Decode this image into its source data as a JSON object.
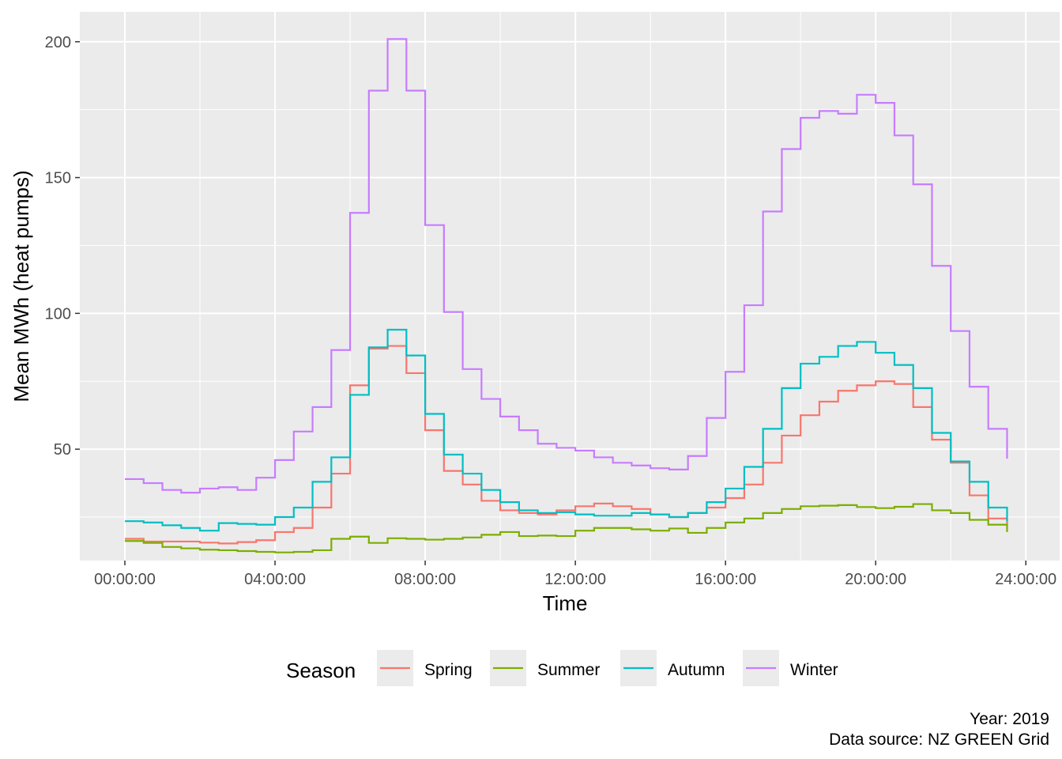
{
  "chart_data": {
    "type": "line",
    "step": true,
    "xlabel": "Time",
    "ylabel": "Mean MWh (heat pumps)",
    "x_ticks": [
      "00:00:00",
      "04:00:00",
      "08:00:00",
      "12:00:00",
      "16:00:00",
      "20:00:00",
      "24:00:00"
    ],
    "x_tick_hours": [
      0,
      4,
      8,
      12,
      16,
      20,
      24
    ],
    "xlim_hours": [
      -1.2,
      24.9
    ],
    "y_ticks": [
      50,
      100,
      150,
      200
    ],
    "ylim": [
      9,
      211
    ],
    "grid": true,
    "legend": {
      "title": "Season",
      "position": "bottom"
    },
    "caption": [
      "Year: 2019",
      "Data source: NZ GREEN Grid"
    ],
    "x_hours": [
      0,
      0.5,
      1,
      1.5,
      2,
      2.5,
      3,
      3.5,
      4,
      4.5,
      5,
      5.5,
      6,
      6.5,
      7,
      7.5,
      8,
      8.5,
      9,
      9.5,
      10,
      10.5,
      11,
      11.5,
      12,
      12.5,
      13,
      13.5,
      14,
      14.5,
      15,
      15.5,
      16,
      16.5,
      17,
      17.5,
      18,
      18.5,
      19,
      19.5,
      20,
      20.5,
      21,
      21.5,
      22,
      22.5,
      23,
      23.5
    ],
    "series": [
      {
        "name": "Spring",
        "color": "#F8766D",
        "values": [
          17.0,
          16.0,
          16.0,
          16.0,
          15.6,
          15.3,
          15.8,
          16.5,
          19.5,
          21.0,
          28.5,
          41.0,
          73.5,
          87.0,
          88.0,
          78.0,
          57.0,
          42.0,
          37.0,
          31.0,
          27.5,
          26.5,
          26.0,
          27.5,
          29.0,
          30.0,
          29.0,
          28.0,
          26.0,
          25.0,
          26.5,
          28.5,
          32.0,
          37.0,
          45.0,
          55.0,
          62.5,
          67.5,
          71.5,
          73.5,
          75.0,
          74.0,
          65.5,
          53.5,
          45.0,
          33.0,
          24.5,
          22.0
        ]
      },
      {
        "name": "Summer",
        "color": "#7CAE00",
        "values": [
          16.2,
          15.5,
          14.0,
          13.5,
          13.0,
          12.8,
          12.5,
          12.2,
          12.0,
          12.2,
          12.8,
          17.0,
          17.8,
          15.5,
          17.2,
          17.0,
          16.7,
          17.0,
          17.5,
          18.5,
          19.5,
          18.0,
          18.2,
          18.0,
          20.0,
          21.0,
          21.0,
          20.5,
          20.0,
          20.8,
          19.2,
          21.0,
          23.0,
          24.5,
          26.5,
          28.0,
          29.0,
          29.2,
          29.4,
          28.7,
          28.3,
          28.8,
          29.8,
          27.5,
          26.5,
          24.0,
          22.2,
          19.5
        ]
      },
      {
        "name": "Autumn",
        "color": "#00BFC4",
        "values": [
          23.5,
          23.0,
          22.0,
          21.0,
          20.0,
          22.8,
          22.5,
          22.2,
          25.0,
          28.5,
          38.0,
          47.0,
          70.0,
          87.5,
          94.0,
          84.5,
          63.0,
          48.0,
          41.0,
          35.0,
          30.5,
          27.5,
          26.5,
          26.8,
          26.0,
          25.5,
          25.5,
          26.5,
          26.0,
          25.0,
          26.5,
          30.5,
          35.5,
          43.5,
          57.5,
          72.5,
          81.5,
          84.0,
          88.0,
          89.5,
          85.5,
          81.0,
          72.5,
          56.0,
          45.5,
          38.0,
          28.5,
          23.5
        ]
      },
      {
        "name": "Winter",
        "color": "#C77CFF",
        "values": [
          39.0,
          37.5,
          35.0,
          34.0,
          35.5,
          36.0,
          35.0,
          39.5,
          46.0,
          56.5,
          65.5,
          86.5,
          137.0,
          182.0,
          201.0,
          182.0,
          132.5,
          100.5,
          79.5,
          68.5,
          62.0,
          57.0,
          52.0,
          50.5,
          49.5,
          47.0,
          45.0,
          44.0,
          43.0,
          42.5,
          47.5,
          61.5,
          78.5,
          103.0,
          137.5,
          160.5,
          172.0,
          174.5,
          173.5,
          180.5,
          177.5,
          165.5,
          147.5,
          117.5,
          93.5,
          73.0,
          57.5,
          46.5
        ]
      }
    ]
  }
}
